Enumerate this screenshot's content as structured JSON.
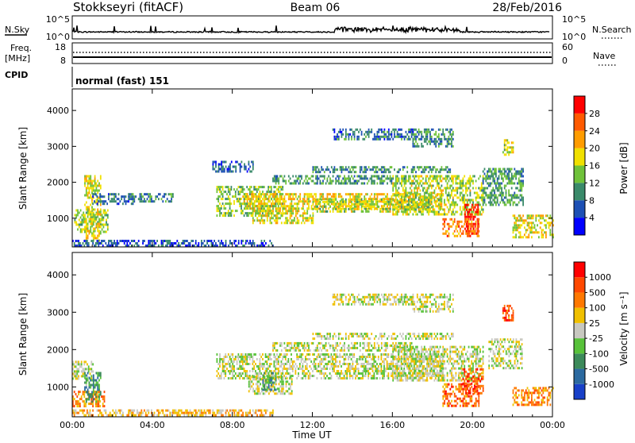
{
  "header": {
    "station": "Stokkseyri (fitACF)",
    "beam": "Beam 06",
    "date": "28/Feb/2016"
  },
  "strips": {
    "nsky_label": "N.Sky",
    "nsky_ticks": [
      "10^5",
      "10^0"
    ],
    "nsearch_label": "N.Search",
    "nsearch_ticks": [
      "10^5",
      "10^0"
    ],
    "freq_label": "Freq.",
    "freq_unit": "[MHz]",
    "freq_ticks": [
      "18",
      "8"
    ],
    "nave_label": "Nave",
    "nave_ticks": [
      "60",
      "0"
    ],
    "cpid_label": "CPID",
    "cpid_value": "normal (fast) 151"
  },
  "colorbars": {
    "power": {
      "label": "Power [dB]",
      "ticks": [
        "28",
        "24",
        "20",
        "16",
        "12",
        "8",
        "4"
      ],
      "colors": [
        "#0000ff",
        "#1d50b4",
        "#3a8a6a",
        "#6fc23a",
        "#f0e000",
        "#ff9c00",
        "#ff5a00",
        "#ff0000"
      ]
    },
    "velocity": {
      "label": "Velocity [m s⁻¹]",
      "ticks": [
        "1000",
        "500",
        "100",
        "25",
        "-25",
        "-100",
        "-500",
        "-1000"
      ],
      "colors": [
        "#1840c8",
        "#2c6aa0",
        "#3c8a5a",
        "#58c23a",
        "#c8c8c0",
        "#f0c000",
        "#ff7800",
        "#ff4800",
        "#ff0000"
      ]
    }
  },
  "chart_data": [
    {
      "type": "heatmap",
      "panel": "power",
      "ylabel": "Slant Range [km]",
      "xlabel": "",
      "yticks": [
        "4000",
        "3000",
        "2000",
        "1000"
      ],
      "ylim": [
        200,
        4600
      ],
      "xlim_hours": [
        0,
        24
      ],
      "patches": [
        {
          "t0": 0.1,
          "t1": 1.8,
          "r0": 600,
          "r1": 1250,
          "level": 0.45
        },
        {
          "t0": 0.6,
          "t1": 1.4,
          "r0": 400,
          "r1": 2200,
          "level": 0.55
        },
        {
          "t0": 1.0,
          "t1": 3.0,
          "r0": 1400,
          "r1": 1700,
          "level": 0.25
        },
        {
          "t0": 3.0,
          "t1": 5.0,
          "r0": 1500,
          "r1": 1700,
          "level": 0.3
        },
        {
          "t0": 0.0,
          "t1": 10.0,
          "r0": 250,
          "r1": 400,
          "level": 0.2
        },
        {
          "t0": 7.2,
          "t1": 10.5,
          "r0": 1100,
          "r1": 1900,
          "level": 0.45
        },
        {
          "t0": 8.5,
          "t1": 18.5,
          "r0": 1300,
          "r1": 1700,
          "level": 0.6
        },
        {
          "t0": 9.0,
          "t1": 12.0,
          "r0": 900,
          "r1": 1300,
          "level": 0.55
        },
        {
          "t0": 12.0,
          "t1": 18.0,
          "r0": 1200,
          "r1": 1550,
          "level": 0.5
        },
        {
          "t0": 10.0,
          "t1": 17.0,
          "r0": 2000,
          "r1": 2200,
          "level": 0.35
        },
        {
          "t0": 12.0,
          "t1": 19.0,
          "r0": 2300,
          "r1": 2450,
          "level": 0.3
        },
        {
          "t0": 16.0,
          "t1": 20.5,
          "r0": 1100,
          "r1": 2200,
          "level": 0.5
        },
        {
          "t0": 18.5,
          "t1": 20.3,
          "r0": 500,
          "r1": 1000,
          "level": 0.75
        },
        {
          "t0": 19.6,
          "t1": 20.3,
          "r0": 600,
          "r1": 1400,
          "level": 0.92
        },
        {
          "t0": 20.5,
          "t1": 22.5,
          "r0": 1400,
          "r1": 2400,
          "level": 0.35
        },
        {
          "t0": 21.5,
          "t1": 22.0,
          "r0": 2800,
          "r1": 3200,
          "level": 0.5
        },
        {
          "t0": 22.0,
          "t1": 24.0,
          "r0": 500,
          "r1": 1100,
          "level": 0.55
        },
        {
          "t0": 13.0,
          "t1": 17.0,
          "r0": 3200,
          "r1": 3500,
          "level": 0.25
        },
        {
          "t0": 17.0,
          "t1": 19.0,
          "r0": 3000,
          "r1": 3500,
          "level": 0.3
        },
        {
          "t0": 7.0,
          "t1": 9.0,
          "r0": 2300,
          "r1": 2600,
          "level": 0.2
        }
      ]
    },
    {
      "type": "heatmap",
      "panel": "velocity",
      "ylabel": "Slant Range [km]",
      "xlabel": "Time UT",
      "yticks": [
        "4000",
        "3000",
        "2000",
        "1000"
      ],
      "xticks": [
        "00:00",
        "04:00",
        "08:00",
        "12:00",
        "16:00",
        "20:00",
        "00:00"
      ],
      "ylim": [
        200,
        4600
      ],
      "xlim_hours": [
        0,
        24
      ],
      "patches": [
        {
          "t0": 0.0,
          "t1": 1.6,
          "r0": 500,
          "r1": 900,
          "level": 0.72
        },
        {
          "t0": 0.0,
          "t1": 1.0,
          "r0": 1200,
          "r1": 1700,
          "level": 0.5
        },
        {
          "t0": 0.6,
          "t1": 1.4,
          "r0": 600,
          "r1": 1400,
          "level": 0.3
        },
        {
          "t0": 7.2,
          "t1": 18.5,
          "r0": 1200,
          "r1": 1900,
          "level": 0.5
        },
        {
          "t0": 8.8,
          "t1": 11.0,
          "r0": 850,
          "r1": 1300,
          "level": 0.5
        },
        {
          "t0": 9.5,
          "t1": 10.2,
          "r0": 900,
          "r1": 1400,
          "level": 0.32
        },
        {
          "t0": 10.0,
          "t1": 17.0,
          "r0": 2000,
          "r1": 2200,
          "level": 0.5
        },
        {
          "t0": 12.0,
          "t1": 19.0,
          "r0": 2300,
          "r1": 2450,
          "level": 0.5
        },
        {
          "t0": 16.0,
          "t1": 20.5,
          "r0": 1200,
          "r1": 2100,
          "level": 0.5
        },
        {
          "t0": 18.5,
          "t1": 20.3,
          "r0": 500,
          "r1": 1100,
          "level": 0.78
        },
        {
          "t0": 19.5,
          "t1": 20.5,
          "r0": 800,
          "r1": 1500,
          "level": 0.82
        },
        {
          "t0": 21.5,
          "t1": 22.0,
          "r0": 2800,
          "r1": 3200,
          "level": 0.8
        },
        {
          "t0": 22.0,
          "t1": 24.0,
          "r0": 500,
          "r1": 1000,
          "level": 0.72
        },
        {
          "t0": 20.8,
          "t1": 22.5,
          "r0": 1500,
          "r1": 2300,
          "level": 0.5
        },
        {
          "t0": 0.0,
          "t1": 10.0,
          "r0": 250,
          "r1": 400,
          "level": 0.62
        },
        {
          "t0": 13.0,
          "t1": 17.0,
          "r0": 3200,
          "r1": 3500,
          "level": 0.5
        },
        {
          "t0": 17.0,
          "t1": 19.0,
          "r0": 3000,
          "r1": 3500,
          "level": 0.5
        }
      ]
    }
  ]
}
